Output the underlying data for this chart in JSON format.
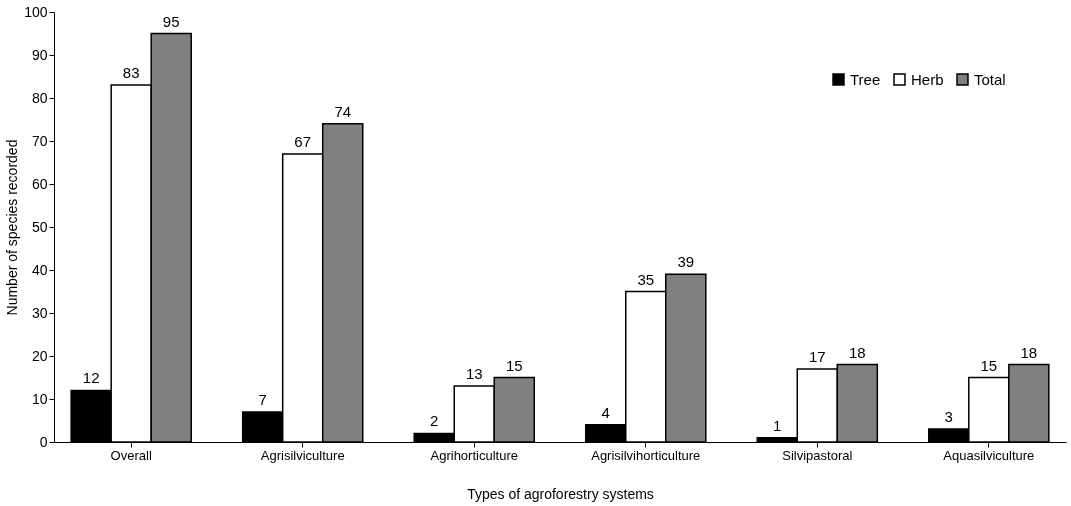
{
  "chart_data": {
    "type": "bar",
    "xlabel": "Types of agroforestry systems",
    "ylabel": "Number of species recorded",
    "categories": [
      "Overall",
      "Agrisilviculture",
      "Agrihorticulture",
      "Agrisilvihorticulture",
      "Silvipastoral",
      "Aquasilviculture"
    ],
    "series": [
      {
        "name": "Tree",
        "color": "#000000",
        "values": [
          12,
          7,
          2,
          4,
          1,
          3
        ]
      },
      {
        "name": "Herb",
        "color": "#ffffff",
        "values": [
          83,
          67,
          13,
          35,
          17,
          15
        ]
      },
      {
        "name": "Total",
        "color": "#808080",
        "values": [
          95,
          74,
          15,
          39,
          18,
          18
        ]
      }
    ],
    "ylim": [
      0,
      100
    ],
    "yticks": [
      0,
      10,
      20,
      30,
      40,
      50,
      60,
      70,
      80,
      90,
      100
    ],
    "data_labels": true,
    "grid": false,
    "legend": "top right"
  }
}
